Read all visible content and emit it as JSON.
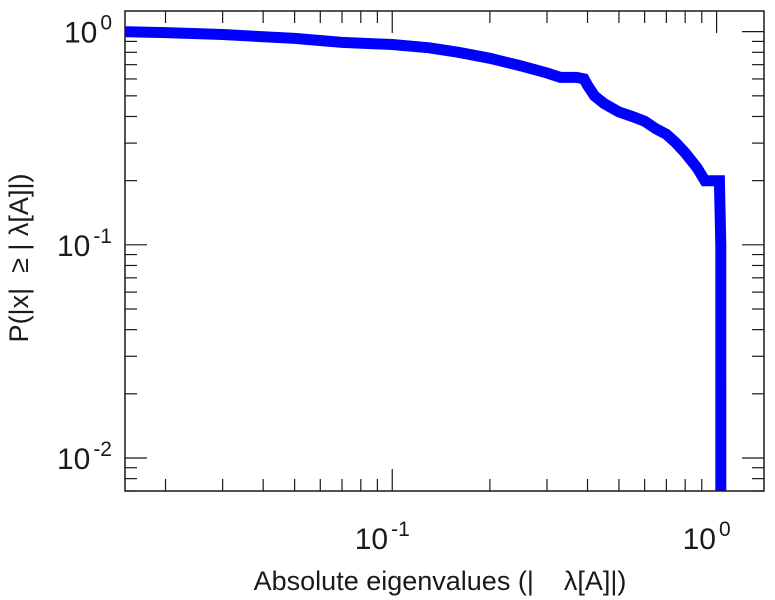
{
  "chart_data": {
    "type": "line",
    "xlabel": "Absolute eigenvalues (|    λ[A]|)",
    "ylabel": "P(|x|  ≥ | λ[A]|)",
    "x_scale": "log",
    "y_scale": "log",
    "xlim": [
      0.015,
      1.4
    ],
    "ylim": [
      0.007,
      1.25
    ],
    "grid": false,
    "legend": "none",
    "x_ticks": [
      {
        "base": "10",
        "exp": "-1",
        "value": 0.1
      },
      {
        "base": "10",
        "exp": "0",
        "value": 1
      }
    ],
    "y_ticks": [
      {
        "base": "10",
        "exp": "-2",
        "value": 0.01
      },
      {
        "base": "10",
        "exp": "-1",
        "value": 0.1
      },
      {
        "base": "10",
        "exp": "0",
        "value": 1
      }
    ],
    "series": [
      {
        "color": "#0000ff",
        "x": [
          0.015,
          0.02,
          0.03,
          0.05,
          0.07,
          0.1,
          0.13,
          0.16,
          0.2,
          0.25,
          0.3,
          0.33,
          0.37,
          0.39,
          0.4,
          0.42,
          0.45,
          0.5,
          0.55,
          0.6,
          0.65,
          0.7,
          0.75,
          0.8,
          0.87,
          0.92,
          1.0,
          1.02,
          1.03,
          1.03
        ],
        "y": [
          1.0,
          0.99,
          0.97,
          0.93,
          0.89,
          0.87,
          0.84,
          0.8,
          0.75,
          0.69,
          0.64,
          0.61,
          0.61,
          0.6,
          0.56,
          0.5,
          0.46,
          0.42,
          0.4,
          0.38,
          0.35,
          0.33,
          0.3,
          0.27,
          0.23,
          0.2,
          0.2,
          0.2,
          0.1,
          0.007
        ]
      }
    ]
  }
}
